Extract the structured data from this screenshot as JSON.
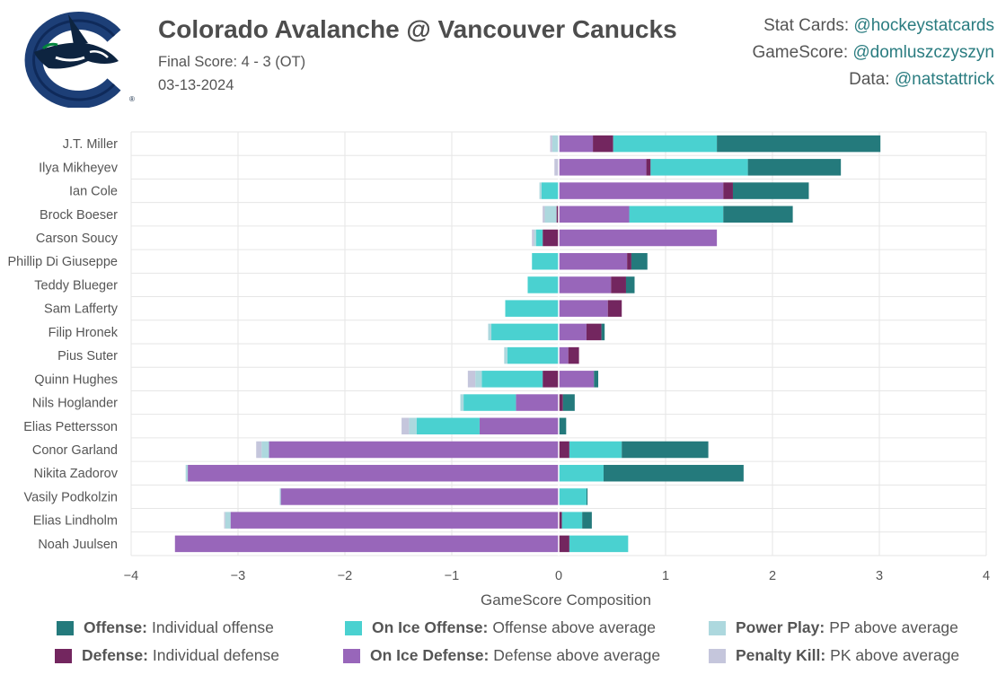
{
  "header": {
    "title": "Colorado Avalanche @ Vancouver Canucks",
    "final_score": "Final Score: 4 - 3 (OT)",
    "date": "03-13-2024"
  },
  "credits": [
    {
      "label": "Stat Cards: ",
      "handle": "@hockeystatcards"
    },
    {
      "label": "GameScore: ",
      "handle": "@domluszczyszyn"
    },
    {
      "label": "Data: ",
      "handle": "@natstattrick"
    }
  ],
  "logo": {
    "icon": "orca-c-logo-icon",
    "mark": "®"
  },
  "colors": {
    "offense": "#247a7c",
    "defense": "#73265f",
    "on_ice_offense": "#4ad1d0",
    "on_ice_defense": "#9866ba",
    "power_play": "#add8de",
    "penalty_kill": "#c5c6dc"
  },
  "legend": [
    {
      "key": "Offense:",
      "desc": "Individual offense",
      "color": "#247a7c"
    },
    {
      "key": "On Ice Offense:",
      "desc": "Offense above average",
      "color": "#4ad1d0"
    },
    {
      "key": "Power Play:",
      "desc": "PP above average",
      "color": "#add8de"
    },
    {
      "key": "Defense:",
      "desc": "Individual defense",
      "color": "#73265f"
    },
    {
      "key": "On Ice Defense:",
      "desc": "Defense above average",
      "color": "#9866ba"
    },
    {
      "key": "Penalty Kill:",
      "desc": "PK above average",
      "color": "#c5c6dc"
    }
  ],
  "chart_data": {
    "type": "bar",
    "orientation": "horizontal",
    "stacked": true,
    "xlabel": "GameScore Composition",
    "xlim": [
      -4,
      4
    ],
    "xticks": [
      -4,
      -3,
      -2,
      -1,
      0,
      1,
      2,
      3,
      4
    ],
    "grid": true,
    "components": [
      "offense",
      "defense",
      "on_ice_offense",
      "on_ice_defense",
      "power_play",
      "penalty_kill"
    ],
    "players": [
      {
        "name": "J.T. Miller",
        "offense": 1.53,
        "defense": 0.19,
        "on_ice_offense": 0.97,
        "on_ice_defense": 0.32,
        "power_play": -0.06,
        "penalty_kill": -0.02
      },
      {
        "name": "Ilya Mikheyev",
        "offense": 0.87,
        "defense": 0.04,
        "on_ice_offense": 0.91,
        "on_ice_defense": 0.82,
        "power_play": 0,
        "penalty_kill": -0.04
      },
      {
        "name": "Ian Cole",
        "offense": 0.71,
        "defense": 0.09,
        "on_ice_offense": -0.16,
        "on_ice_defense": 1.54,
        "power_play": -0.02,
        "penalty_kill": 0
      },
      {
        "name": "Brock Boeser",
        "offense": 0.65,
        "defense": -0.02,
        "on_ice_offense": 0.88,
        "on_ice_defense": 0.66,
        "power_play": -0.11,
        "penalty_kill": -0.02
      },
      {
        "name": "Carson Soucy",
        "offense": 0,
        "defense": -0.15,
        "on_ice_offense": -0.06,
        "on_ice_defense": 1.48,
        "power_play": -0.02,
        "penalty_kill": -0.02
      },
      {
        "name": "Phillip Di Giuseppe",
        "offense": 0.15,
        "defense": 0.04,
        "on_ice_offense": -0.25,
        "on_ice_defense": 0.64,
        "power_play": 0,
        "penalty_kill": 0
      },
      {
        "name": "Teddy Blueger",
        "offense": 0.08,
        "defense": 0.14,
        "on_ice_offense": -0.29,
        "on_ice_defense": 0.49,
        "power_play": 0,
        "penalty_kill": 0
      },
      {
        "name": "Sam Lafferty",
        "offense": 0,
        "defense": 0.13,
        "on_ice_offense": -0.5,
        "on_ice_defense": 0.46,
        "power_play": 0,
        "penalty_kill": 0
      },
      {
        "name": "Filip Hronek",
        "offense": 0.03,
        "defense": 0.14,
        "on_ice_offense": -0.63,
        "on_ice_defense": 0.26,
        "power_play": -0.03,
        "penalty_kill": 0
      },
      {
        "name": "Pius Suter",
        "offense": 0,
        "defense": 0.1,
        "on_ice_offense": -0.48,
        "on_ice_defense": 0.09,
        "power_play": -0.03,
        "penalty_kill": 0
      },
      {
        "name": "Quinn Hughes",
        "offense": 0.04,
        "defense": -0.15,
        "on_ice_offense": -0.57,
        "on_ice_defense": 0.33,
        "power_play": -0.06,
        "penalty_kill": -0.07
      },
      {
        "name": "Nils Hoglander",
        "offense": 0.11,
        "defense": 0.04,
        "on_ice_offense": -0.49,
        "on_ice_defense": -0.4,
        "power_play": -0.03,
        "penalty_kill": 0
      },
      {
        "name": "Elias Pettersson",
        "offense": 0.07,
        "defense": 0,
        "on_ice_offense": -0.59,
        "on_ice_defense": -0.74,
        "power_play": -0.07,
        "penalty_kill": -0.07
      },
      {
        "name": "Conor Garland",
        "offense": 0.81,
        "defense": 0.1,
        "on_ice_offense": 0.49,
        "on_ice_defense": -2.71,
        "power_play": -0.07,
        "penalty_kill": -0.05
      },
      {
        "name": "Nikita Zadorov",
        "offense": 1.31,
        "defense": 0,
        "on_ice_offense": 0.42,
        "on_ice_defense": -3.47,
        "power_play": -0.02,
        "penalty_kill": 0
      },
      {
        "name": "Vasily Podkolzin",
        "offense": 0.01,
        "defense": 0,
        "on_ice_offense": 0.26,
        "on_ice_defense": -2.6,
        "power_play": -0.01,
        "penalty_kill": 0
      },
      {
        "name": "Elias Lindholm",
        "offense": 0.09,
        "defense": 0.03,
        "on_ice_offense": 0.19,
        "on_ice_defense": -3.07,
        "power_play": -0.05,
        "penalty_kill": -0.01
      },
      {
        "name": "Noah Juulsen",
        "offense": 0,
        "defense": 0.1,
        "on_ice_offense": 0.55,
        "on_ice_defense": -3.59,
        "power_play": 0,
        "penalty_kill": 0
      }
    ]
  }
}
